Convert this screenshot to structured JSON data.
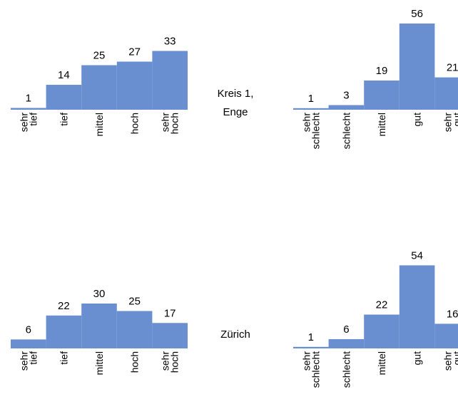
{
  "chart_data": [
    {
      "type": "bar",
      "region_label": [
        "Kreis 1,",
        "Enge"
      ],
      "categories": [
        [
          "sehr",
          "tief"
        ],
        [
          "tief"
        ],
        [
          "mittel"
        ],
        [
          "hoch"
        ],
        [
          "sehr",
          "hoch"
        ]
      ],
      "values": [
        1,
        14,
        25,
        27,
        33
      ],
      "color": "#6a8fd0",
      "grid": false,
      "ylim": [
        0,
        33
      ]
    },
    {
      "type": "bar",
      "categories": [
        [
          "sehr",
          "schlecht"
        ],
        [
          "schlecht"
        ],
        [
          "mittel"
        ],
        [
          "gut"
        ],
        [
          "sehr",
          "gut"
        ]
      ],
      "values": [
        1,
        3,
        19,
        56,
        21
      ],
      "color": "#6a8fd0",
      "grid": false,
      "ylim": [
        0,
        56
      ]
    },
    {
      "type": "bar",
      "region_label": [
        "Zürich"
      ],
      "categories": [
        [
          "sehr",
          "tief"
        ],
        [
          "tief"
        ],
        [
          "mittel"
        ],
        [
          "hoch"
        ],
        [
          "sehr",
          "hoch"
        ]
      ],
      "values": [
        6,
        22,
        30,
        25,
        17
      ],
      "color": "#6a8fd0",
      "grid": false,
      "ylim": [
        0,
        33
      ]
    },
    {
      "type": "bar",
      "categories": [
        [
          "sehr",
          "schlecht"
        ],
        [
          "schlecht"
        ],
        [
          "mittel"
        ],
        [
          "gut"
        ],
        [
          "sehr",
          "gut"
        ]
      ],
      "values": [
        1,
        6,
        22,
        54,
        16
      ],
      "color": "#6a8fd0",
      "grid": false,
      "ylim": [
        0,
        56
      ]
    }
  ]
}
